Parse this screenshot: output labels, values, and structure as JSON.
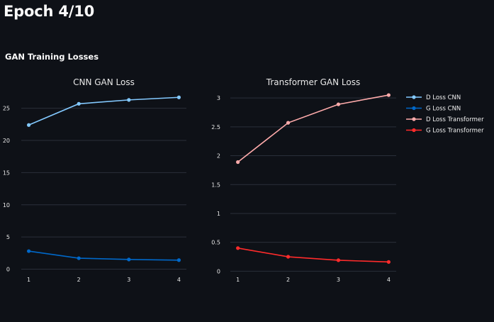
{
  "page": {
    "title": "Epoch 4/10",
    "section_title": "GAN Training Losses"
  },
  "colors": {
    "background": "#0e1117",
    "grid": "#2a2f3a",
    "d_loss_cnn": "#83c9ff",
    "g_loss_cnn": "#0068c9",
    "d_loss_transformer": "#ffabab",
    "g_loss_transformer": "#ff2b2b"
  },
  "chart_data": [
    {
      "type": "line",
      "title": "CNN GAN Loss",
      "xlabel": "",
      "ylabel": "",
      "x": [
        1,
        2,
        3,
        4
      ],
      "x_ticks": [
        "1",
        "2",
        "3",
        "4"
      ],
      "xlim": [
        0.85,
        4.15
      ],
      "ylim": [
        -0.5,
        27.5
      ],
      "y_ticks": [
        0,
        5,
        10,
        15,
        20,
        25
      ],
      "y_tick_labels": [
        "0",
        "5",
        "10",
        "15",
        "20",
        "25"
      ],
      "grid": true,
      "series": [
        {
          "name": "D Loss CNN",
          "color": "#83c9ff",
          "values": [
            22.4,
            25.7,
            26.3,
            26.7
          ]
        },
        {
          "name": "G Loss CNN",
          "color": "#0068c9",
          "values": [
            2.8,
            1.7,
            1.5,
            1.4
          ]
        }
      ]
    },
    {
      "type": "line",
      "title": "Transformer GAN Loss",
      "xlabel": "",
      "ylabel": "",
      "x": [
        1,
        2,
        3,
        4
      ],
      "x_ticks": [
        "1",
        "2",
        "3",
        "4"
      ],
      "xlim": [
        0.85,
        4.15
      ],
      "ylim": [
        -0.02,
        3.1
      ],
      "y_ticks": [
        0,
        0.5,
        1,
        1.5,
        2,
        2.5,
        3
      ],
      "y_tick_labels": [
        "0",
        "0.5",
        "1",
        "1.5",
        "2",
        "2.5",
        "3"
      ],
      "grid": true,
      "series": [
        {
          "name": "D Loss Transformer",
          "color": "#ffabab",
          "values": [
            1.89,
            2.57,
            2.89,
            3.05
          ]
        },
        {
          "name": "G Loss Transformer",
          "color": "#ff2b2b",
          "values": [
            0.4,
            0.25,
            0.19,
            0.16
          ]
        }
      ]
    }
  ],
  "legend": {
    "placement": "right",
    "items": [
      {
        "label": "D Loss CNN",
        "color": "#83c9ff"
      },
      {
        "label": "G Loss CNN",
        "color": "#0068c9"
      },
      {
        "label": "D Loss Transformer",
        "color": "#ffabab"
      },
      {
        "label": "G Loss Transformer",
        "color": "#ff2b2b"
      }
    ]
  }
}
